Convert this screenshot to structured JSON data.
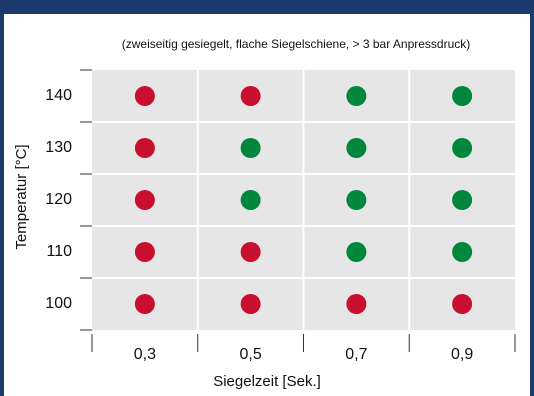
{
  "chart_data": {
    "type": "dot-matrix",
    "subtitle": "(zweiseitig gesiegelt, flache Siegelschiene, > 3 bar Anpressdruck)",
    "x_label": "Siegelzeit [Sek.]",
    "y_label": "Temperatur [°C]",
    "categories": [
      "0,3",
      "0,5",
      "0,7",
      "0,9"
    ],
    "y_categories": [
      "140",
      "130",
      "120",
      "110",
      "100"
    ],
    "cells": [
      [
        "#c8102e",
        "#c8102e",
        "#00873c",
        "#00873c"
      ],
      [
        "#c8102e",
        "#00873c",
        "#00873c",
        "#00873c"
      ],
      [
        "#c8102e",
        "#00873c",
        "#00873c",
        "#00873c"
      ],
      [
        "#c8102e",
        "#c8102e",
        "#00873c",
        "#00873c"
      ],
      [
        "#c8102e",
        "#c8102e",
        "#c8102e",
        "#c8102e"
      ]
    ]
  }
}
